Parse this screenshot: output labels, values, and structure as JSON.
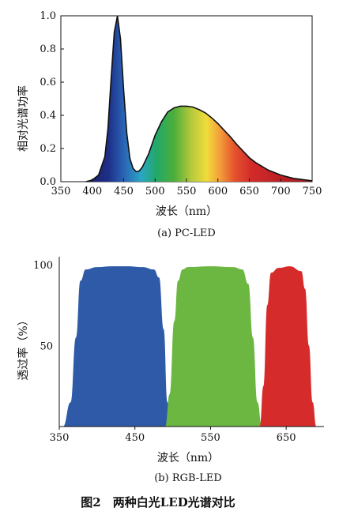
{
  "figure_caption": "图2　两种白光LED光谱对比",
  "chart_data": [
    {
      "type": "area",
      "caption": "(a) PC-LED",
      "xlabel": "波长（nm）",
      "ylabel": "相对光谱功率",
      "xlim": [
        350,
        750
      ],
      "ylim": [
        0,
        1.0
      ],
      "x_ticks": [
        "350",
        "400",
        "450",
        "500",
        "550",
        "600",
        "650",
        "700",
        "750"
      ],
      "y_ticks": [
        "0.0",
        "0.2",
        "0.4",
        "0.6",
        "0.8",
        "1.0"
      ],
      "x_tick_values": [
        350,
        400,
        450,
        500,
        550,
        600,
        650,
        700,
        750
      ],
      "y_tick_values": [
        0.0,
        0.2,
        0.4,
        0.6,
        0.8,
        1.0
      ],
      "series": [
        {
          "x": [
            390,
            400,
            410,
            420,
            425,
            430,
            435,
            440,
            445,
            450,
            455,
            460,
            465,
            470,
            475,
            480,
            490,
            500,
            510,
            520,
            530,
            540,
            550,
            560,
            570,
            580,
            590,
            600,
            610,
            620,
            630,
            640,
            650,
            660,
            680,
            700,
            720,
            740,
            750
          ],
          "y": [
            0.0,
            0.01,
            0.04,
            0.15,
            0.32,
            0.62,
            0.9,
            1.0,
            0.86,
            0.55,
            0.29,
            0.14,
            0.08,
            0.06,
            0.065,
            0.09,
            0.17,
            0.28,
            0.36,
            0.42,
            0.445,
            0.455,
            0.455,
            0.45,
            0.435,
            0.415,
            0.385,
            0.35,
            0.31,
            0.27,
            0.225,
            0.185,
            0.145,
            0.115,
            0.07,
            0.04,
            0.02,
            0.01,
            0.005
          ]
        }
      ]
    },
    {
      "type": "area",
      "caption": "(b) RGB-LED",
      "xlabel": "波长（nm）",
      "ylabel": "透过率（%）",
      "xlim": [
        350,
        700
      ],
      "ylim": [
        0,
        100
      ],
      "x_ticks": [
        "350",
        "450",
        "550",
        "650"
      ],
      "y_ticks": [
        "50",
        "100"
      ],
      "x_tick_values": [
        350,
        450,
        550,
        650
      ],
      "y_tick_values": [
        50,
        100
      ],
      "series": [
        {
          "color": "#2e5aa8",
          "x": [
            355,
            365,
            372,
            378,
            385,
            400,
            420,
            440,
            460,
            475,
            482,
            488,
            493,
            497
          ],
          "y": [
            0,
            15,
            55,
            90,
            97,
            98.5,
            99,
            99,
            98.5,
            97,
            92,
            60,
            15,
            0
          ]
        },
        {
          "color": "#6cb642",
          "x": [
            490,
            496,
            502,
            507,
            513,
            520,
            550,
            580,
            592,
            600,
            606,
            612,
            618
          ],
          "y": [
            0,
            20,
            65,
            90,
            97,
            98.5,
            99,
            98.5,
            97,
            88,
            55,
            15,
            0
          ]
        },
        {
          "color": "#d62b2b",
          "x": [
            615,
            620,
            625,
            630,
            640,
            655,
            670,
            675,
            680,
            685,
            690
          ],
          "y": [
            0,
            25,
            75,
            95,
            98,
            99,
            96,
            85,
            50,
            15,
            0
          ]
        }
      ]
    }
  ]
}
